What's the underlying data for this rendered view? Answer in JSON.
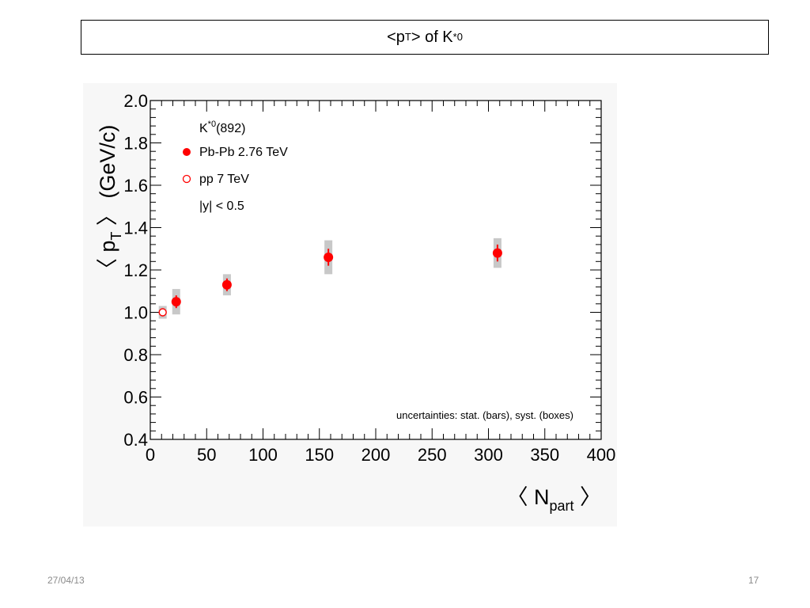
{
  "slide": {
    "title": {
      "prefix": "<p",
      "sub": "T",
      "middle": "> of  K",
      "sup": "*0"
    },
    "date": "27/04/13",
    "page_number": "17"
  },
  "colors": {
    "marker": "#ff0000",
    "syst_box": "#c8c8c8",
    "plot_bg": "#f7f7f7",
    "axis": "#000000"
  },
  "chart_data": {
    "type": "scatter",
    "xlim": [
      0,
      400
    ],
    "ylim": [
      0.4,
      2.0
    ],
    "x_ticks": [
      0,
      50,
      100,
      150,
      200,
      250,
      300,
      350,
      400
    ],
    "y_ticks": [
      "0.4",
      "0.6",
      "0.8",
      "1.0",
      "1.2",
      "1.4",
      "1.6",
      "1.8",
      "2.0"
    ],
    "ylabel": {
      "left": "〈 p",
      "sub": "T",
      "right": " 〉 (GeV/c)"
    },
    "xlabel": {
      "left": "〈 N",
      "sub": "part",
      "right": " 〉"
    },
    "legend": {
      "header": "K",
      "header_sup": "*0",
      "header_suffix": "(892)",
      "entries": [
        {
          "label": "Pb-Pb 2.76 TeV",
          "marker": "filled-circle"
        },
        {
          "label": "pp 7 TeV",
          "marker": "open-circle"
        }
      ],
      "note": "|y| < 0.5",
      "placement": "top-left"
    },
    "annotation": "uncertainties: stat. (bars), syst. (boxes)",
    "series": [
      {
        "name": "Pb-Pb 2.76 TeV",
        "marker": "filled-circle",
        "points": [
          {
            "x": 23,
            "y": 1.05,
            "stat": 0.03,
            "syst": 0.06
          },
          {
            "x": 68,
            "y": 1.13,
            "stat": 0.03,
            "syst": 0.05
          },
          {
            "x": 158,
            "y": 1.26,
            "stat": 0.04,
            "syst": 0.08
          },
          {
            "x": 308,
            "y": 1.28,
            "stat": 0.04,
            "syst": 0.07
          }
        ]
      },
      {
        "name": "pp 7 TeV",
        "marker": "open-circle",
        "points": [
          {
            "x": 11,
            "y": 1.0,
            "stat": 0.01,
            "syst": 0.03
          }
        ]
      }
    ]
  }
}
